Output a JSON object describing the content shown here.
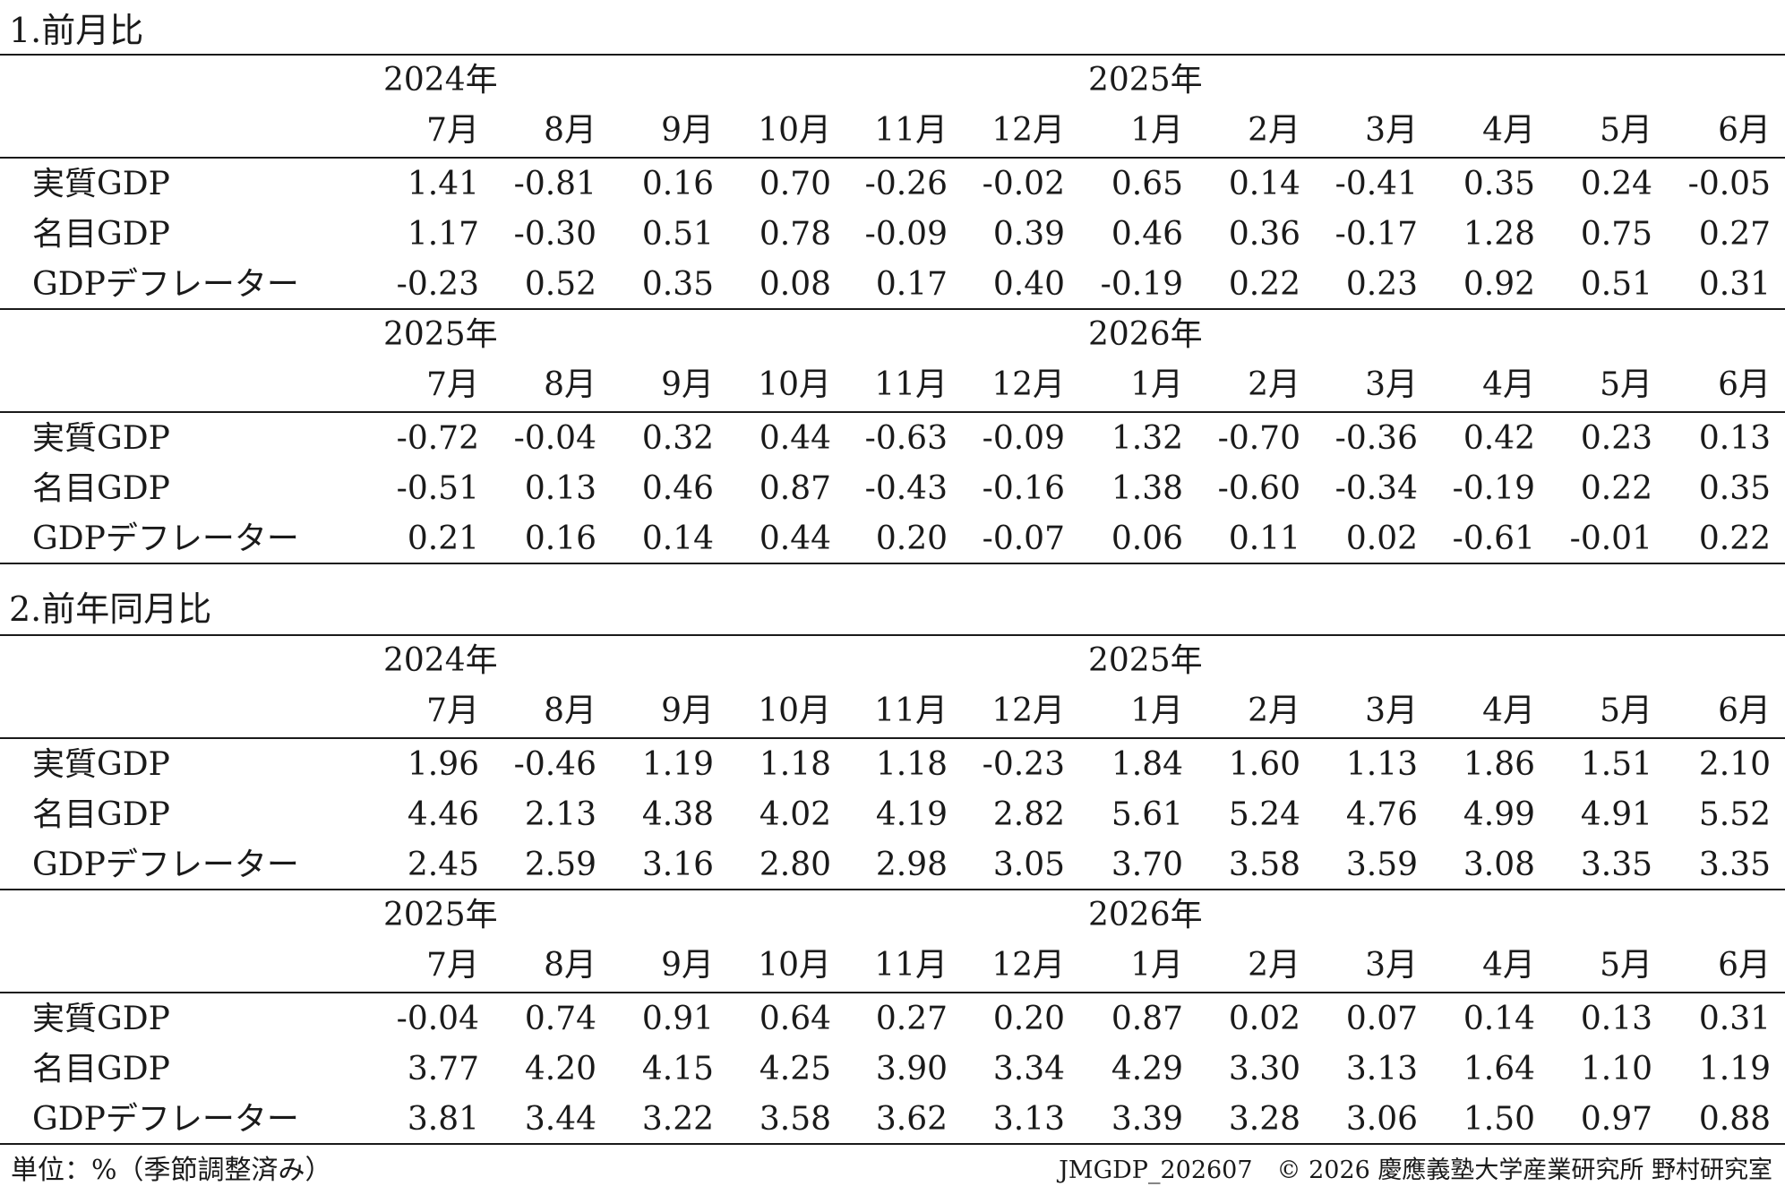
{
  "sections": [
    {
      "title": "1.前月比",
      "blocks": [
        {
          "year_left": "2024年",
          "year_right": "2025年",
          "months": [
            "7月",
            "8月",
            "9月",
            "10月",
            "11月",
            "12月",
            "1月",
            "2月",
            "3月",
            "4月",
            "5月",
            "6月"
          ],
          "rows": [
            {
              "label": "実質GDP",
              "values": [
                "1.41",
                "-0.81",
                "0.16",
                "0.70",
                "-0.26",
                "-0.02",
                "0.65",
                "0.14",
                "-0.41",
                "0.35",
                "0.24",
                "-0.05"
              ]
            },
            {
              "label": "名目GDP",
              "values": [
                "1.17",
                "-0.30",
                "0.51",
                "0.78",
                "-0.09",
                "0.39",
                "0.46",
                "0.36",
                "-0.17",
                "1.28",
                "0.75",
                "0.27"
              ]
            },
            {
              "label": "GDPデフレーター",
              "values": [
                "-0.23",
                "0.52",
                "0.35",
                "0.08",
                "0.17",
                "0.40",
                "-0.19",
                "0.22",
                "0.23",
                "0.92",
                "0.51",
                "0.31"
              ]
            }
          ]
        },
        {
          "year_left": "2025年",
          "year_right": "2026年",
          "months": [
            "7月",
            "8月",
            "9月",
            "10月",
            "11月",
            "12月",
            "1月",
            "2月",
            "3月",
            "4月",
            "5月",
            "6月"
          ],
          "rows": [
            {
              "label": "実質GDP",
              "values": [
                "-0.72",
                "-0.04",
                "0.32",
                "0.44",
                "-0.63",
                "-0.09",
                "1.32",
                "-0.70",
                "-0.36",
                "0.42",
                "0.23",
                "0.13"
              ]
            },
            {
              "label": "名目GDP",
              "values": [
                "-0.51",
                "0.13",
                "0.46",
                "0.87",
                "-0.43",
                "-0.16",
                "1.38",
                "-0.60",
                "-0.34",
                "-0.19",
                "0.22",
                "0.35"
              ]
            },
            {
              "label": "GDPデフレーター",
              "values": [
                "0.21",
                "0.16",
                "0.14",
                "0.44",
                "0.20",
                "-0.07",
                "0.06",
                "0.11",
                "0.02",
                "-0.61",
                "-0.01",
                "0.22"
              ]
            }
          ]
        }
      ]
    },
    {
      "title": "2.前年同月比",
      "blocks": [
        {
          "year_left": "2024年",
          "year_right": "2025年",
          "months": [
            "7月",
            "8月",
            "9月",
            "10月",
            "11月",
            "12月",
            "1月",
            "2月",
            "3月",
            "4月",
            "5月",
            "6月"
          ],
          "rows": [
            {
              "label": "実質GDP",
              "values": [
                "1.96",
                "-0.46",
                "1.19",
                "1.18",
                "1.18",
                "-0.23",
                "1.84",
                "1.60",
                "1.13",
                "1.86",
                "1.51",
                "2.10"
              ]
            },
            {
              "label": "名目GDP",
              "values": [
                "4.46",
                "2.13",
                "4.38",
                "4.02",
                "4.19",
                "2.82",
                "5.61",
                "5.24",
                "4.76",
                "4.99",
                "4.91",
                "5.52"
              ]
            },
            {
              "label": "GDPデフレーター",
              "values": [
                "2.45",
                "2.59",
                "3.16",
                "2.80",
                "2.98",
                "3.05",
                "3.70",
                "3.58",
                "3.59",
                "3.08",
                "3.35",
                "3.35"
              ]
            }
          ]
        },
        {
          "year_left": "2025年",
          "year_right": "2026年",
          "months": [
            "7月",
            "8月",
            "9月",
            "10月",
            "11月",
            "12月",
            "1月",
            "2月",
            "3月",
            "4月",
            "5月",
            "6月"
          ],
          "rows": [
            {
              "label": "実質GDP",
              "values": [
                "-0.04",
                "0.74",
                "0.91",
                "0.64",
                "0.27",
                "0.20",
                "0.87",
                "0.02",
                "0.07",
                "0.14",
                "0.13",
                "0.31"
              ]
            },
            {
              "label": "名目GDP",
              "values": [
                "3.77",
                "4.20",
                "4.15",
                "4.25",
                "3.90",
                "3.34",
                "4.29",
                "3.30",
                "3.13",
                "1.64",
                "1.10",
                "1.19"
              ]
            },
            {
              "label": "GDPデフレーター",
              "values": [
                "3.81",
                "3.44",
                "3.22",
                "3.58",
                "3.62",
                "3.13",
                "3.39",
                "3.28",
                "3.06",
                "1.50",
                "0.97",
                "0.88"
              ]
            }
          ]
        }
      ]
    }
  ],
  "footer": {
    "unit_note": "単位：%（季節調整済み）",
    "credit": "JMGDP_202607　© 2026 慶應義塾大学産業研究所 野村研究室"
  }
}
